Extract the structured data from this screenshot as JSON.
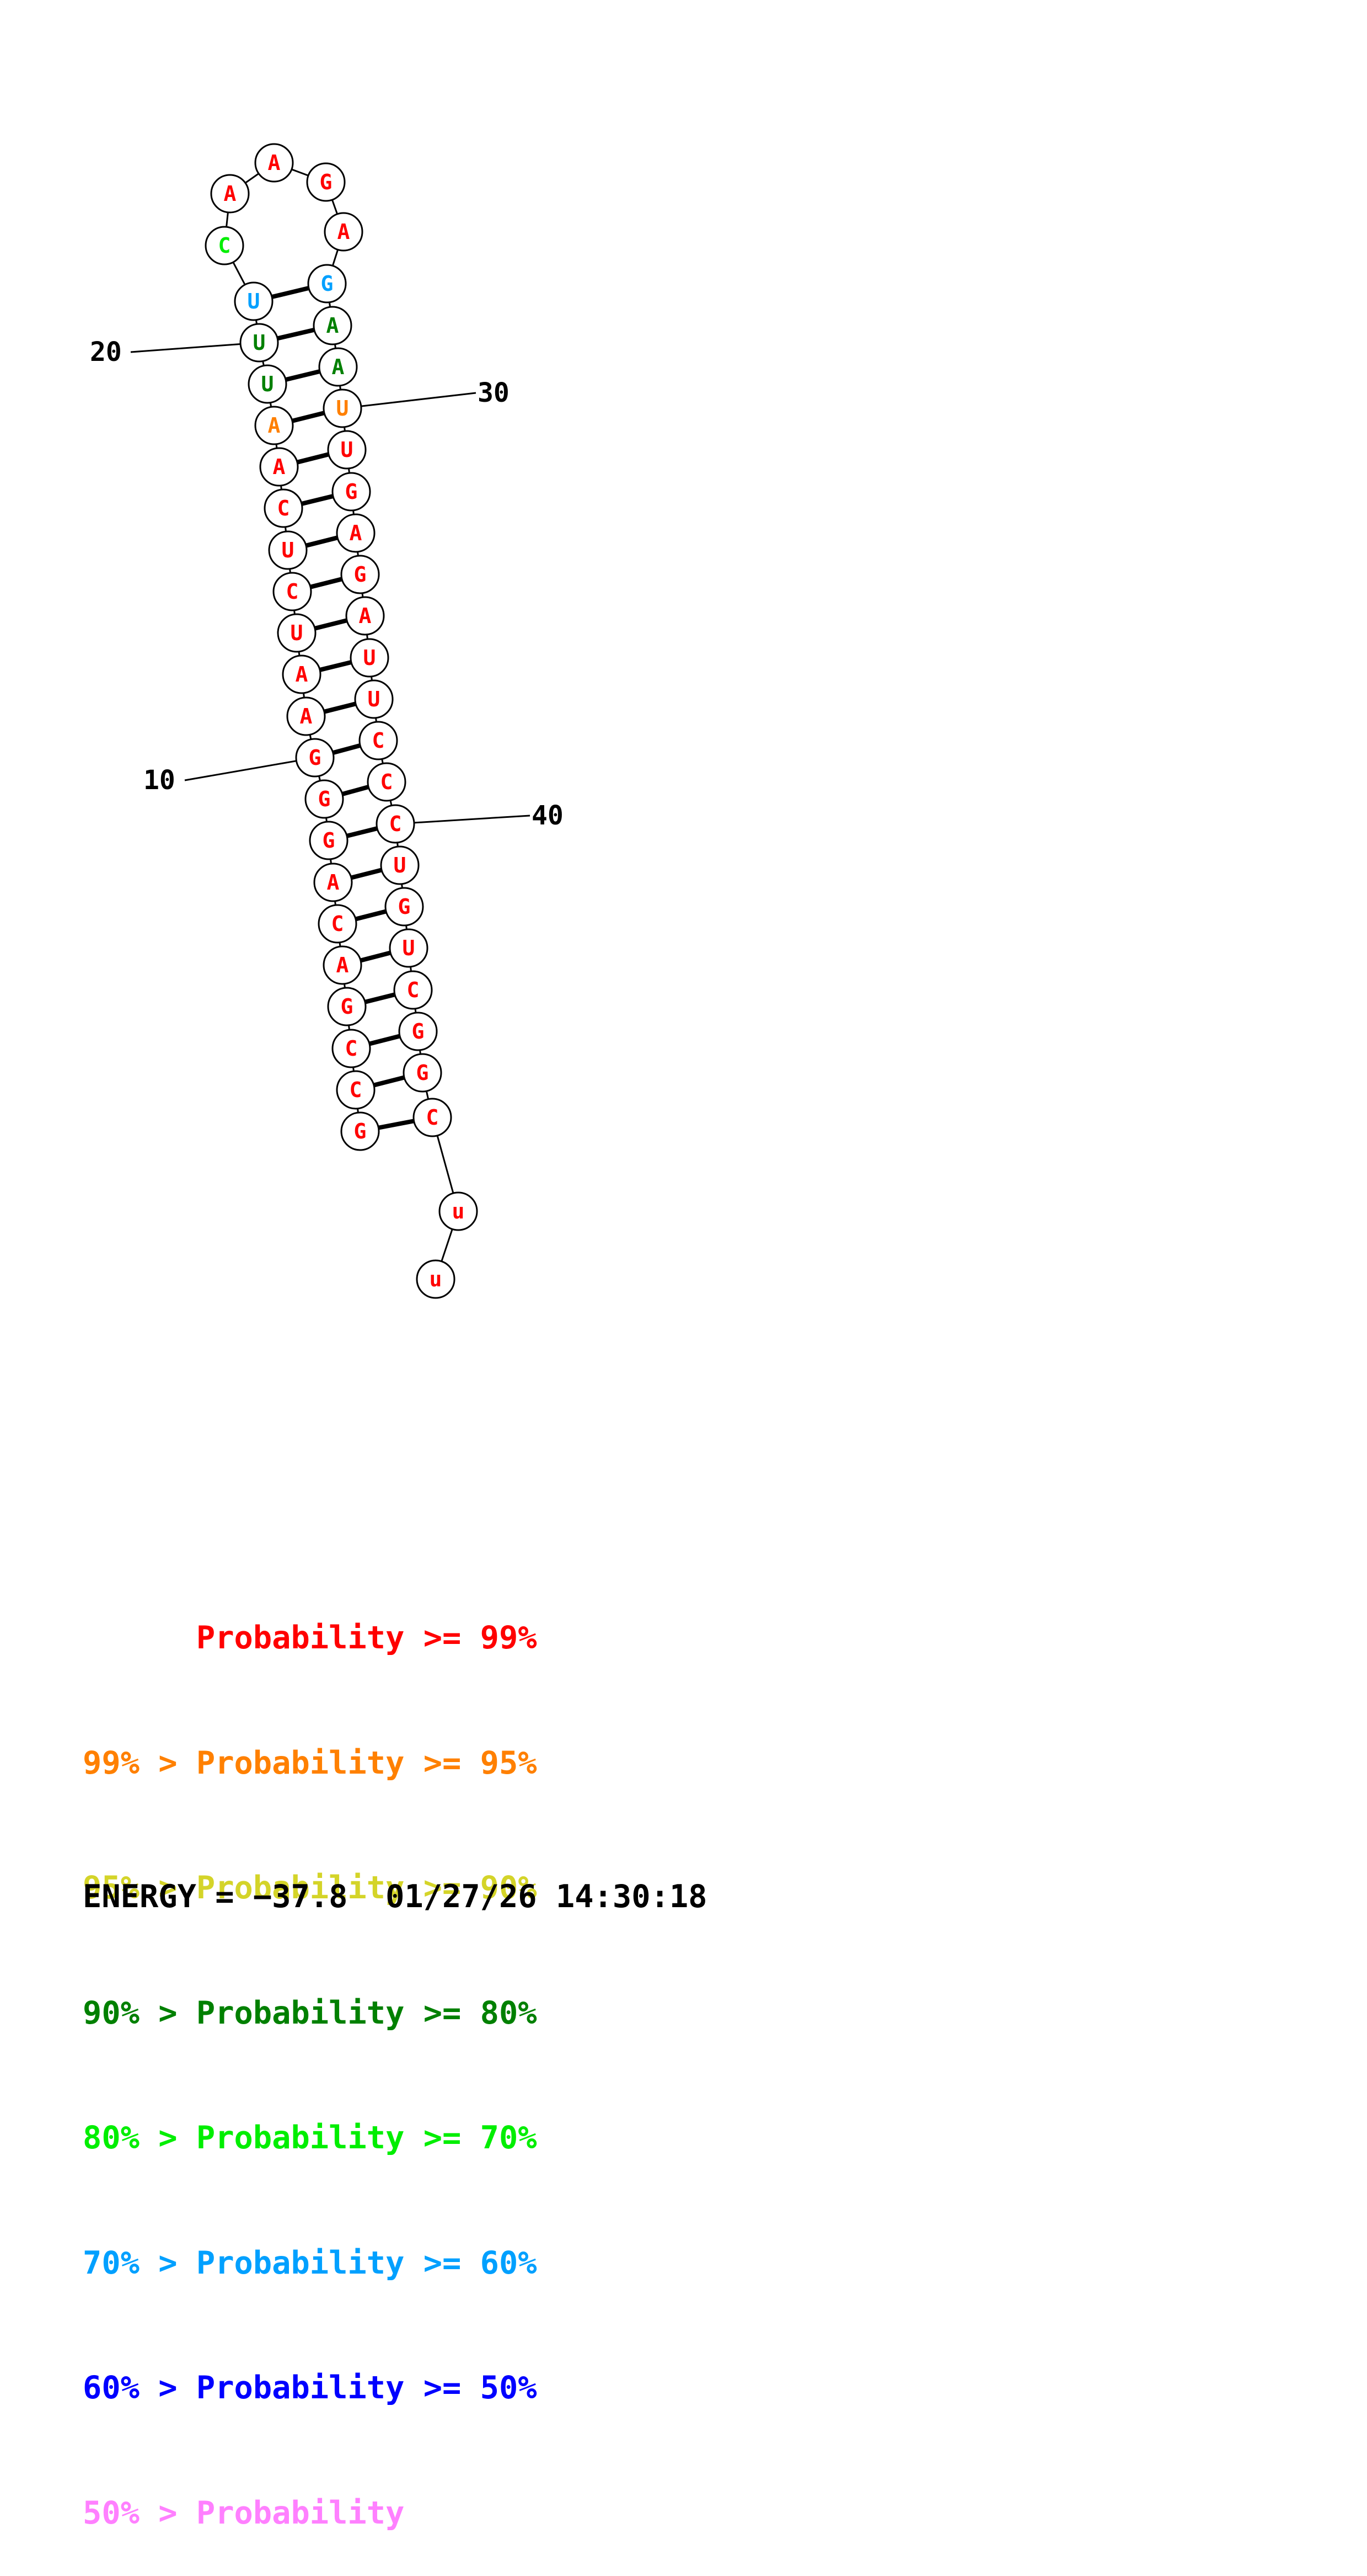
{
  "structure": {
    "sequence": [
      "G",
      "C",
      "C",
      "G",
      "A",
      "C",
      "A",
      "G",
      "G",
      "G",
      "A",
      "A",
      "U",
      "C",
      "U",
      "C",
      "A",
      "A",
      "U",
      "U",
      "U",
      "C",
      "A",
      "A",
      "G",
      "A",
      "G",
      "A",
      "A",
      "U",
      "U",
      "G",
      "A",
      "G",
      "A",
      "U",
      "U",
      "C",
      "C",
      "C",
      "U",
      "G",
      "U",
      "C",
      "G",
      "G",
      "C",
      "u",
      "u"
    ],
    "probability_class": [
      0,
      0,
      0,
      0,
      0,
      0,
      0,
      0,
      0,
      0,
      0,
      0,
      0,
      0,
      0,
      0,
      0,
      1,
      3,
      3,
      5,
      4,
      0,
      0,
      0,
      0,
      5,
      3,
      3,
      1,
      0,
      0,
      0,
      0,
      0,
      0,
      0,
      0,
      0,
      0,
      0,
      0,
      0,
      0,
      0,
      0,
      0,
      0,
      0
    ],
    "pairs": [
      [
        1,
        47
      ],
      [
        2,
        46
      ],
      [
        3,
        45
      ],
      [
        4,
        44
      ],
      [
        5,
        43
      ],
      [
        6,
        42
      ],
      [
        7,
        41
      ],
      [
        8,
        40
      ],
      [
        9,
        39
      ],
      [
        10,
        38
      ],
      [
        11,
        37
      ],
      [
        12,
        36
      ],
      [
        13,
        35
      ],
      [
        14,
        34
      ],
      [
        15,
        33
      ],
      [
        16,
        32
      ],
      [
        17,
        31
      ],
      [
        18,
        30
      ],
      [
        19,
        29
      ],
      [
        20,
        28
      ],
      [
        21,
        27
      ]
    ],
    "position_labels": [
      "10",
      "20",
      "30",
      "40"
    ],
    "class_colors": [
      "#ff0000",
      "#ff8000",
      "#d4d429",
      "#008000",
      "#00ee00",
      "#00a0ff",
      "#0000ff",
      "#ff80ff"
    ]
  },
  "legend": [
    {
      "text": "      Probability >= 99%",
      "color": "#ff0000"
    },
    {
      "text": "99% > Probability >= 95%",
      "color": "#ff8000"
    },
    {
      "text": "95% > Probability >= 90%",
      "color": "#d4d429"
    },
    {
      "text": "90% > Probability >= 80%",
      "color": "#008000"
    },
    {
      "text": "80% > Probability >= 70%",
      "color": "#00ee00"
    },
    {
      "text": "70% > Probability >= 60%",
      "color": "#00a0ff"
    },
    {
      "text": "60% > Probability >= 50%",
      "color": "#0000ff"
    },
    {
      "text": "50% > Probability",
      "color": "#ff80ff"
    }
  ],
  "footer": {
    "energy_text": "ENERGY = −37.8  01/27/26 14:30:18"
  }
}
